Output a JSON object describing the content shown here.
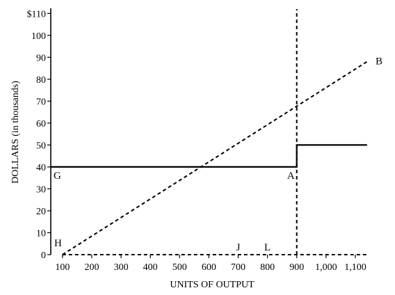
{
  "chart_data": {
    "type": "line",
    "xlabel": "UNITS OF OUTPUT",
    "ylabel": "DOLLARS (in thousands)",
    "xlim": [
      60,
      1150
    ],
    "ylim": [
      0,
      112
    ],
    "x_ticks": [
      {
        "value": 100,
        "label": "100"
      },
      {
        "value": 200,
        "label": "200"
      },
      {
        "value": 300,
        "label": "300"
      },
      {
        "value": 400,
        "label": "400"
      },
      {
        "value": 500,
        "label": "500"
      },
      {
        "value": 600,
        "label": "600"
      },
      {
        "value": 700,
        "label": "700"
      },
      {
        "value": 800,
        "label": "800"
      },
      {
        "value": 900,
        "label": "900"
      },
      {
        "value": 1000,
        "label": "1,000"
      },
      {
        "value": 1100,
        "label": "1,100"
      }
    ],
    "y_ticks": [
      {
        "value": 0,
        "label": "0"
      },
      {
        "value": 10,
        "label": "10"
      },
      {
        "value": 20,
        "label": "20"
      },
      {
        "value": 30,
        "label": "30"
      },
      {
        "value": 40,
        "label": "40"
      },
      {
        "value": 50,
        "label": "50"
      },
      {
        "value": 60,
        "label": "60"
      },
      {
        "value": 70,
        "label": "70"
      },
      {
        "value": 80,
        "label": "80"
      },
      {
        "value": 90,
        "label": "90"
      },
      {
        "value": 100,
        "label": "100"
      },
      {
        "value": 110,
        "label": "$110"
      }
    ],
    "series": [
      {
        "style": "solid",
        "points": [
          [
            60,
            40
          ],
          [
            900,
            40
          ],
          [
            900,
            50
          ],
          [
            1140,
            50
          ]
        ]
      },
      {
        "style": "dashed",
        "points": [
          [
            100,
            0
          ],
          [
            1140,
            88
          ]
        ]
      },
      {
        "style": "dashed",
        "points": [
          [
            900,
            0
          ],
          [
            900,
            112
          ]
        ]
      },
      {
        "style": "dashed",
        "points": [
          [
            100,
            0
          ],
          [
            1140,
            0
          ]
        ]
      }
    ],
    "point_labels": [
      {
        "text": "B",
        "x": 1150,
        "y": 88
      },
      {
        "text": "G",
        "x": 60,
        "y": 40
      },
      {
        "text": "A",
        "x": 900,
        "y": 40
      },
      {
        "text": "H",
        "x": 60,
        "y": 0
      },
      {
        "text": "J",
        "x": 700,
        "y": 0
      },
      {
        "text": "L",
        "x": 800,
        "y": 0
      }
    ],
    "grid": false
  }
}
